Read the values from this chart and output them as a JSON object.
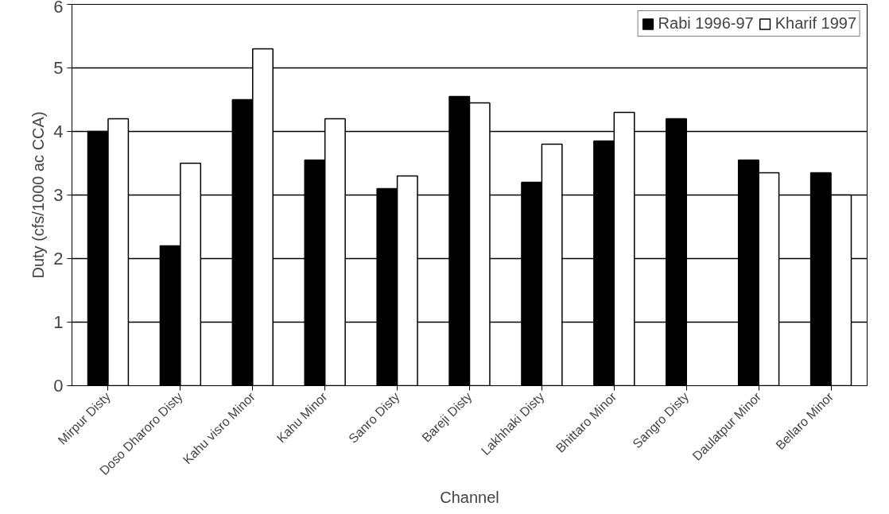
{
  "chart_data": {
    "type": "bar",
    "xlabel": "Channel",
    "ylabel": "Duty (cfs/1000 ac CCA)",
    "categories": [
      "Mirpur Disty",
      "Doso Dharoro Disty",
      "Kahu visro Minor",
      "Kahu Minor",
      "Sanro Disty",
      "Bareji Disty",
      "Lakhhaki Disty",
      "Bhittaro Minor",
      "Sangro Disty",
      "Daulatpur Minor",
      "Bellaro Minor"
    ],
    "series": [
      {
        "name": "Rabi 1996-97",
        "color": "#000000",
        "values": [
          4.0,
          2.2,
          4.5,
          3.55,
          3.1,
          4.55,
          3.2,
          3.85,
          4.2,
          3.55,
          3.35
        ]
      },
      {
        "name": "Kharif 1997",
        "color": "#ffffff",
        "values": [
          4.2,
          3.5,
          5.3,
          4.2,
          3.3,
          4.45,
          3.8,
          4.3,
          null,
          3.35,
          3.0
        ]
      }
    ],
    "ylim": [
      0,
      6
    ],
    "yticks": [
      0,
      1,
      2,
      3,
      4,
      5,
      6
    ],
    "grid": "y",
    "legend": "top right"
  }
}
